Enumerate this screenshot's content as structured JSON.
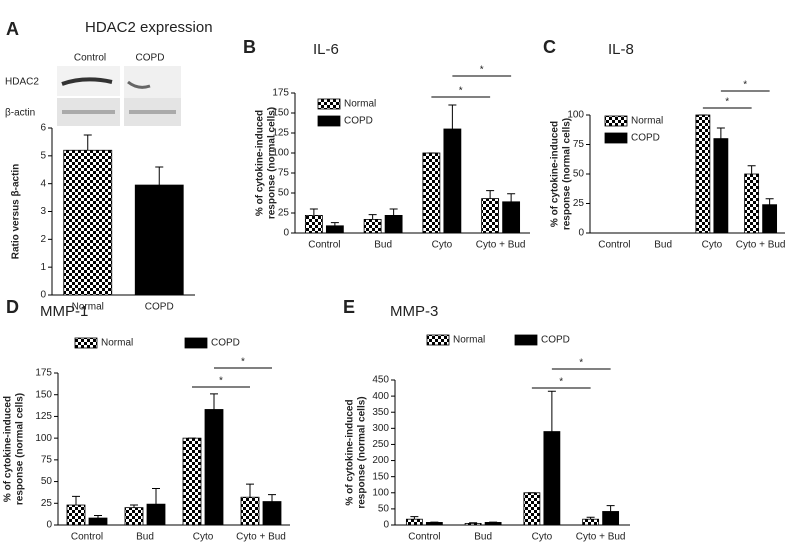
{
  "chart_data": [
    {
      "type": "bar",
      "label": "A",
      "title": "HDAC2 expression",
      "blot": {
        "columns": [
          "Control",
          "COPD"
        ],
        "rows": [
          "HDAC2",
          "β-actin"
        ]
      },
      "ylabel": [
        "Ratio versus β-actin"
      ],
      "categories": [
        "Normal",
        "COPD"
      ],
      "values": [
        5.2,
        3.95
      ],
      "errors": [
        0.55,
        0.65
      ],
      "bar_styles": [
        "checkered",
        "solid"
      ],
      "color": "#000000",
      "ylim": [
        0,
        6
      ],
      "yticks": [
        0,
        1,
        2,
        3,
        4,
        5,
        6
      ],
      "grid": false
    },
    {
      "type": "grouped-bar",
      "label": "B",
      "title": "IL-6",
      "ylabel": [
        "% of cytokine-induced",
        "response (normal cells)"
      ],
      "categories": [
        "Control",
        "Bud",
        "Cyto",
        "Cyto + Bud"
      ],
      "series": [
        {
          "name": "Normal",
          "style": "checkered",
          "color": "#000000",
          "values": [
            22,
            17,
            100,
            43
          ],
          "errors": [
            8,
            6,
            0,
            10
          ]
        },
        {
          "name": "COPD",
          "style": "solid",
          "color": "#000000",
          "values": [
            9,
            22,
            130,
            39
          ],
          "errors": [
            4,
            8,
            30,
            10
          ]
        }
      ],
      "annotations": [
        "*",
        "*"
      ],
      "ylim": [
        0,
        175
      ],
      "yticks": [
        0,
        25,
        50,
        75,
        100,
        125,
        150,
        175
      ],
      "grid": false
    },
    {
      "type": "grouped-bar",
      "label": "C",
      "title": "IL-8",
      "ylabel": [
        "% of cytokine-induced",
        "response (normal cells)"
      ],
      "categories": [
        "Control",
        "Bud",
        "Cyto",
        "Cyto + Bud"
      ],
      "series": [
        {
          "name": "Normal",
          "style": "checkered",
          "color": "#000000",
          "values": [
            null,
            null,
            100,
            50
          ],
          "errors": [
            null,
            null,
            0,
            7
          ]
        },
        {
          "name": "COPD",
          "style": "solid",
          "color": "#000000",
          "values": [
            null,
            null,
            80,
            24
          ],
          "errors": [
            null,
            null,
            9,
            5
          ]
        }
      ],
      "annotations": [
        "*",
        "*"
      ],
      "ylim": [
        0,
        100
      ],
      "yticks": [
        0,
        25,
        50,
        75,
        100
      ],
      "grid": false
    },
    {
      "type": "grouped-bar",
      "label": "D",
      "title": "MMP-1",
      "ylabel": [
        "% of cytokine-induced",
        "response (normal cells)"
      ],
      "categories": [
        "Control",
        "Bud",
        "Cyto",
        "Cyto + Bud"
      ],
      "series": [
        {
          "name": "Normal",
          "style": "checkered",
          "color": "#000000",
          "values": [
            23,
            20,
            100,
            32
          ],
          "errors": [
            10,
            3,
            0,
            15
          ]
        },
        {
          "name": "COPD",
          "style": "solid",
          "color": "#000000",
          "values": [
            8,
            24,
            133,
            27
          ],
          "errors": [
            3,
            18,
            18,
            8
          ]
        }
      ],
      "annotations": [
        "*",
        "*"
      ],
      "ylim": [
        0,
        175
      ],
      "yticks": [
        0,
        25,
        50,
        75,
        100,
        125,
        150,
        175
      ],
      "grid": false
    },
    {
      "type": "grouped-bar",
      "label": "E",
      "title": "MMP-3",
      "ylabel": [
        "% of cytokine-induced",
        "response (normal cells)"
      ],
      "categories": [
        "Control",
        "Bud",
        "Cyto",
        "Cyto + Bud"
      ],
      "series": [
        {
          "name": "Normal",
          "style": "checkered",
          "color": "#000000",
          "values": [
            18,
            5,
            100,
            18
          ],
          "errors": [
            8,
            2,
            0,
            6
          ]
        },
        {
          "name": "COPD",
          "style": "solid",
          "color": "#000000",
          "values": [
            8,
            8,
            290,
            42
          ],
          "errors": [
            1,
            1,
            125,
            18
          ]
        }
      ],
      "annotations": [
        "*",
        "*"
      ],
      "ylim": [
        0,
        450
      ],
      "yticks": [
        0,
        50,
        100,
        150,
        200,
        250,
        300,
        350,
        400,
        450
      ],
      "grid": false
    }
  ]
}
